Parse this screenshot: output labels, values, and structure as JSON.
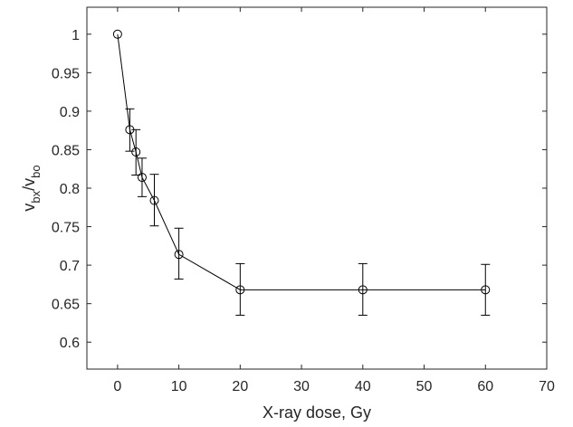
{
  "chart_data": {
    "type": "line",
    "title": "",
    "xlabel": "X-ray dose, Gy",
    "ylabel": {
      "main1": "v",
      "sub1": "bx",
      "sep": "/v",
      "sub2": "bo"
    },
    "xlim": [
      -5,
      70
    ],
    "ylim": [
      0.565,
      1.035
    ],
    "xticks": [
      "0",
      "10",
      "20",
      "30",
      "40",
      "50",
      "60",
      "70"
    ],
    "xtick_values": [
      0,
      10,
      20,
      30,
      40,
      50,
      60,
      70
    ],
    "yticks": [
      "0.6",
      "0.65",
      "0.7",
      "0.75",
      "0.8",
      "0.85",
      "0.9",
      "0.95",
      "1"
    ],
    "ytick_values": [
      0.6,
      0.65,
      0.7,
      0.75,
      0.8,
      0.85,
      0.9,
      0.95,
      1.0
    ],
    "grid": false,
    "marker": "circle-open",
    "color": "#000000",
    "series": [
      {
        "x": [
          0,
          2,
          3,
          4,
          6,
          10,
          20,
          40,
          60
        ],
        "y": [
          1.0,
          0.876,
          0.847,
          0.814,
          0.784,
          0.714,
          0.668,
          0.668,
          0.668
        ],
        "err_low": [
          1.0,
          0.848,
          0.817,
          0.789,
          0.751,
          0.682,
          0.635,
          0.635,
          0.635
        ],
        "err_high": [
          1.0,
          0.903,
          0.876,
          0.839,
          0.818,
          0.748,
          0.702,
          0.702,
          0.701
        ]
      }
    ]
  }
}
